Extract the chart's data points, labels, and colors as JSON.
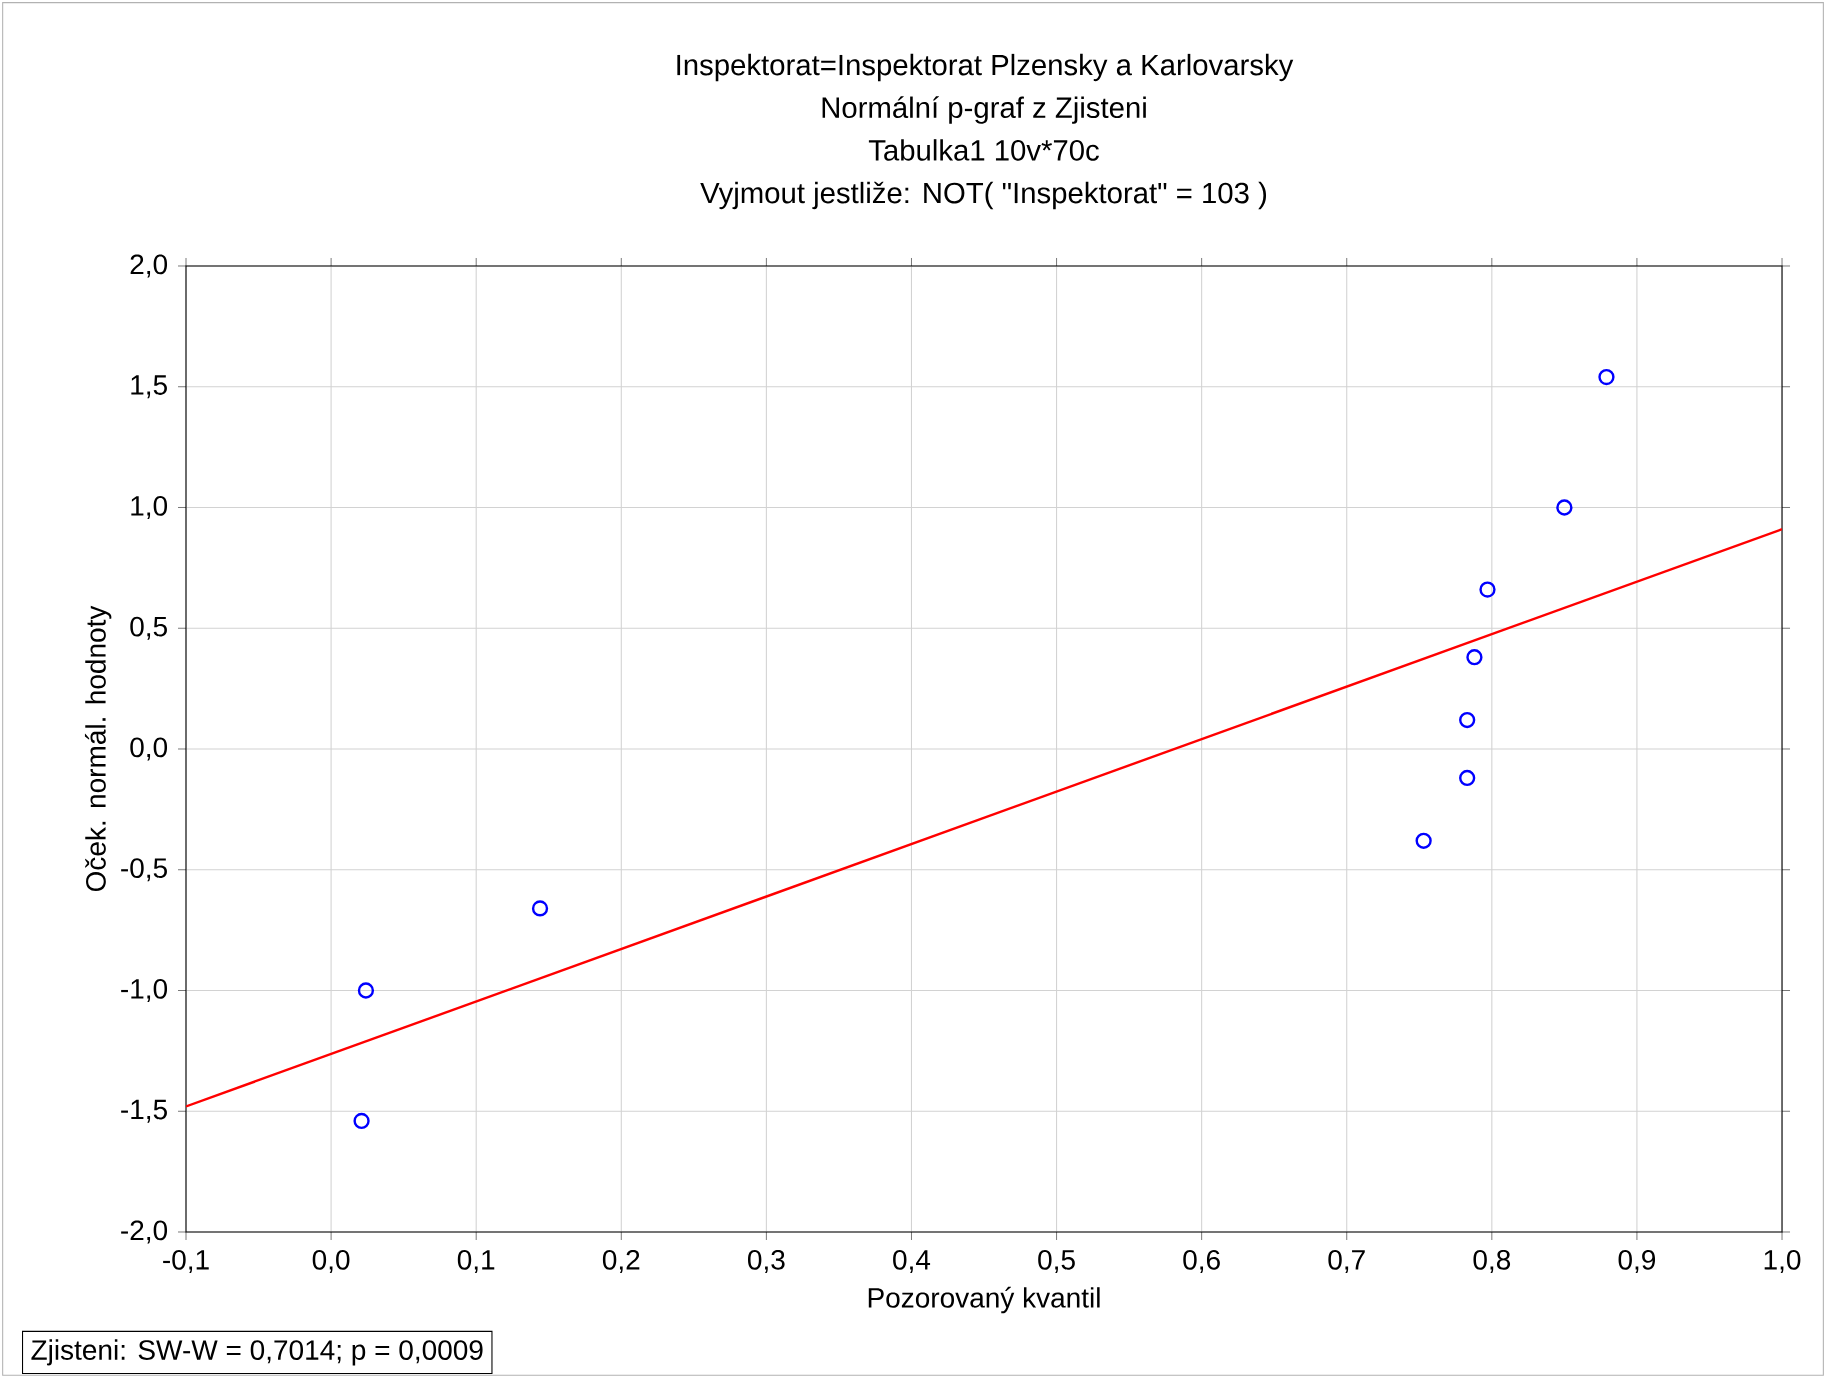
{
  "chart_data": {
    "type": "scatter",
    "title": "Inspektorat=Inspektorat Plzensky a Karlovarsky",
    "subtitle": "Normální p-graf z Zjisteni",
    "annotations": [
      "Tabulka1 10v*70c",
      "Vyjmout jestliže:  NOT( \"Inspektorat\" = 103 )",
      "Zjisteni:  SW-W = 0,7014; p = 0,0009"
    ],
    "xlabel": "Pozorovaný kvantil",
    "ylabel": "Oček. normál. hodnoty",
    "series": [
      {
        "type": "scatter",
        "color": "#0000ff",
        "marker": "circle",
        "x": [
          0.021,
          0.024,
          0.144,
          0.753,
          0.783,
          0.783,
          0.788,
          0.797,
          0.85,
          0.879
        ],
        "values": [
          -1.54,
          -1.0,
          -0.66,
          -0.38,
          -0.12,
          0.12,
          0.38,
          0.66,
          1.0,
          1.54
        ]
      },
      {
        "type": "line",
        "color": "#ff0000",
        "marker": "none",
        "line_style": "solid",
        "x": [
          -0.1,
          1.0
        ],
        "values": [
          -1.48,
          0.91
        ]
      }
    ],
    "xlim": [
      -0.1,
      1.0
    ],
    "ylim": [
      -2.0,
      2.0
    ],
    "xticks": [
      {
        "value": -0.1,
        "label": "-0,1"
      },
      {
        "value": 0.0,
        "label": "0,0"
      },
      {
        "value": 0.1,
        "label": "0,1"
      },
      {
        "value": 0.2,
        "label": "0,2"
      },
      {
        "value": 0.3,
        "label": "0,3"
      },
      {
        "value": 0.4,
        "label": "0,4"
      },
      {
        "value": 0.5,
        "label": "0,5"
      },
      {
        "value": 0.6,
        "label": "0,6"
      },
      {
        "value": 0.7,
        "label": "0,7"
      },
      {
        "value": 0.8,
        "label": "0,8"
      },
      {
        "value": 0.9,
        "label": "0,9"
      },
      {
        "value": 1.0,
        "label": "1,0"
      }
    ],
    "yticks": [
      {
        "value": -2.0,
        "label": "-2,0"
      },
      {
        "value": -1.5,
        "label": "-1,5"
      },
      {
        "value": -1.0,
        "label": "-1,0"
      },
      {
        "value": -0.5,
        "label": "-0,5"
      },
      {
        "value": 0.0,
        "label": "0,0"
      },
      {
        "value": 0.5,
        "label": "0,5"
      },
      {
        "value": 1.0,
        "label": "1,0"
      },
      {
        "value": 1.5,
        "label": "1,5"
      },
      {
        "value": 2.0,
        "label": "2,0"
      }
    ],
    "grid": true
  }
}
